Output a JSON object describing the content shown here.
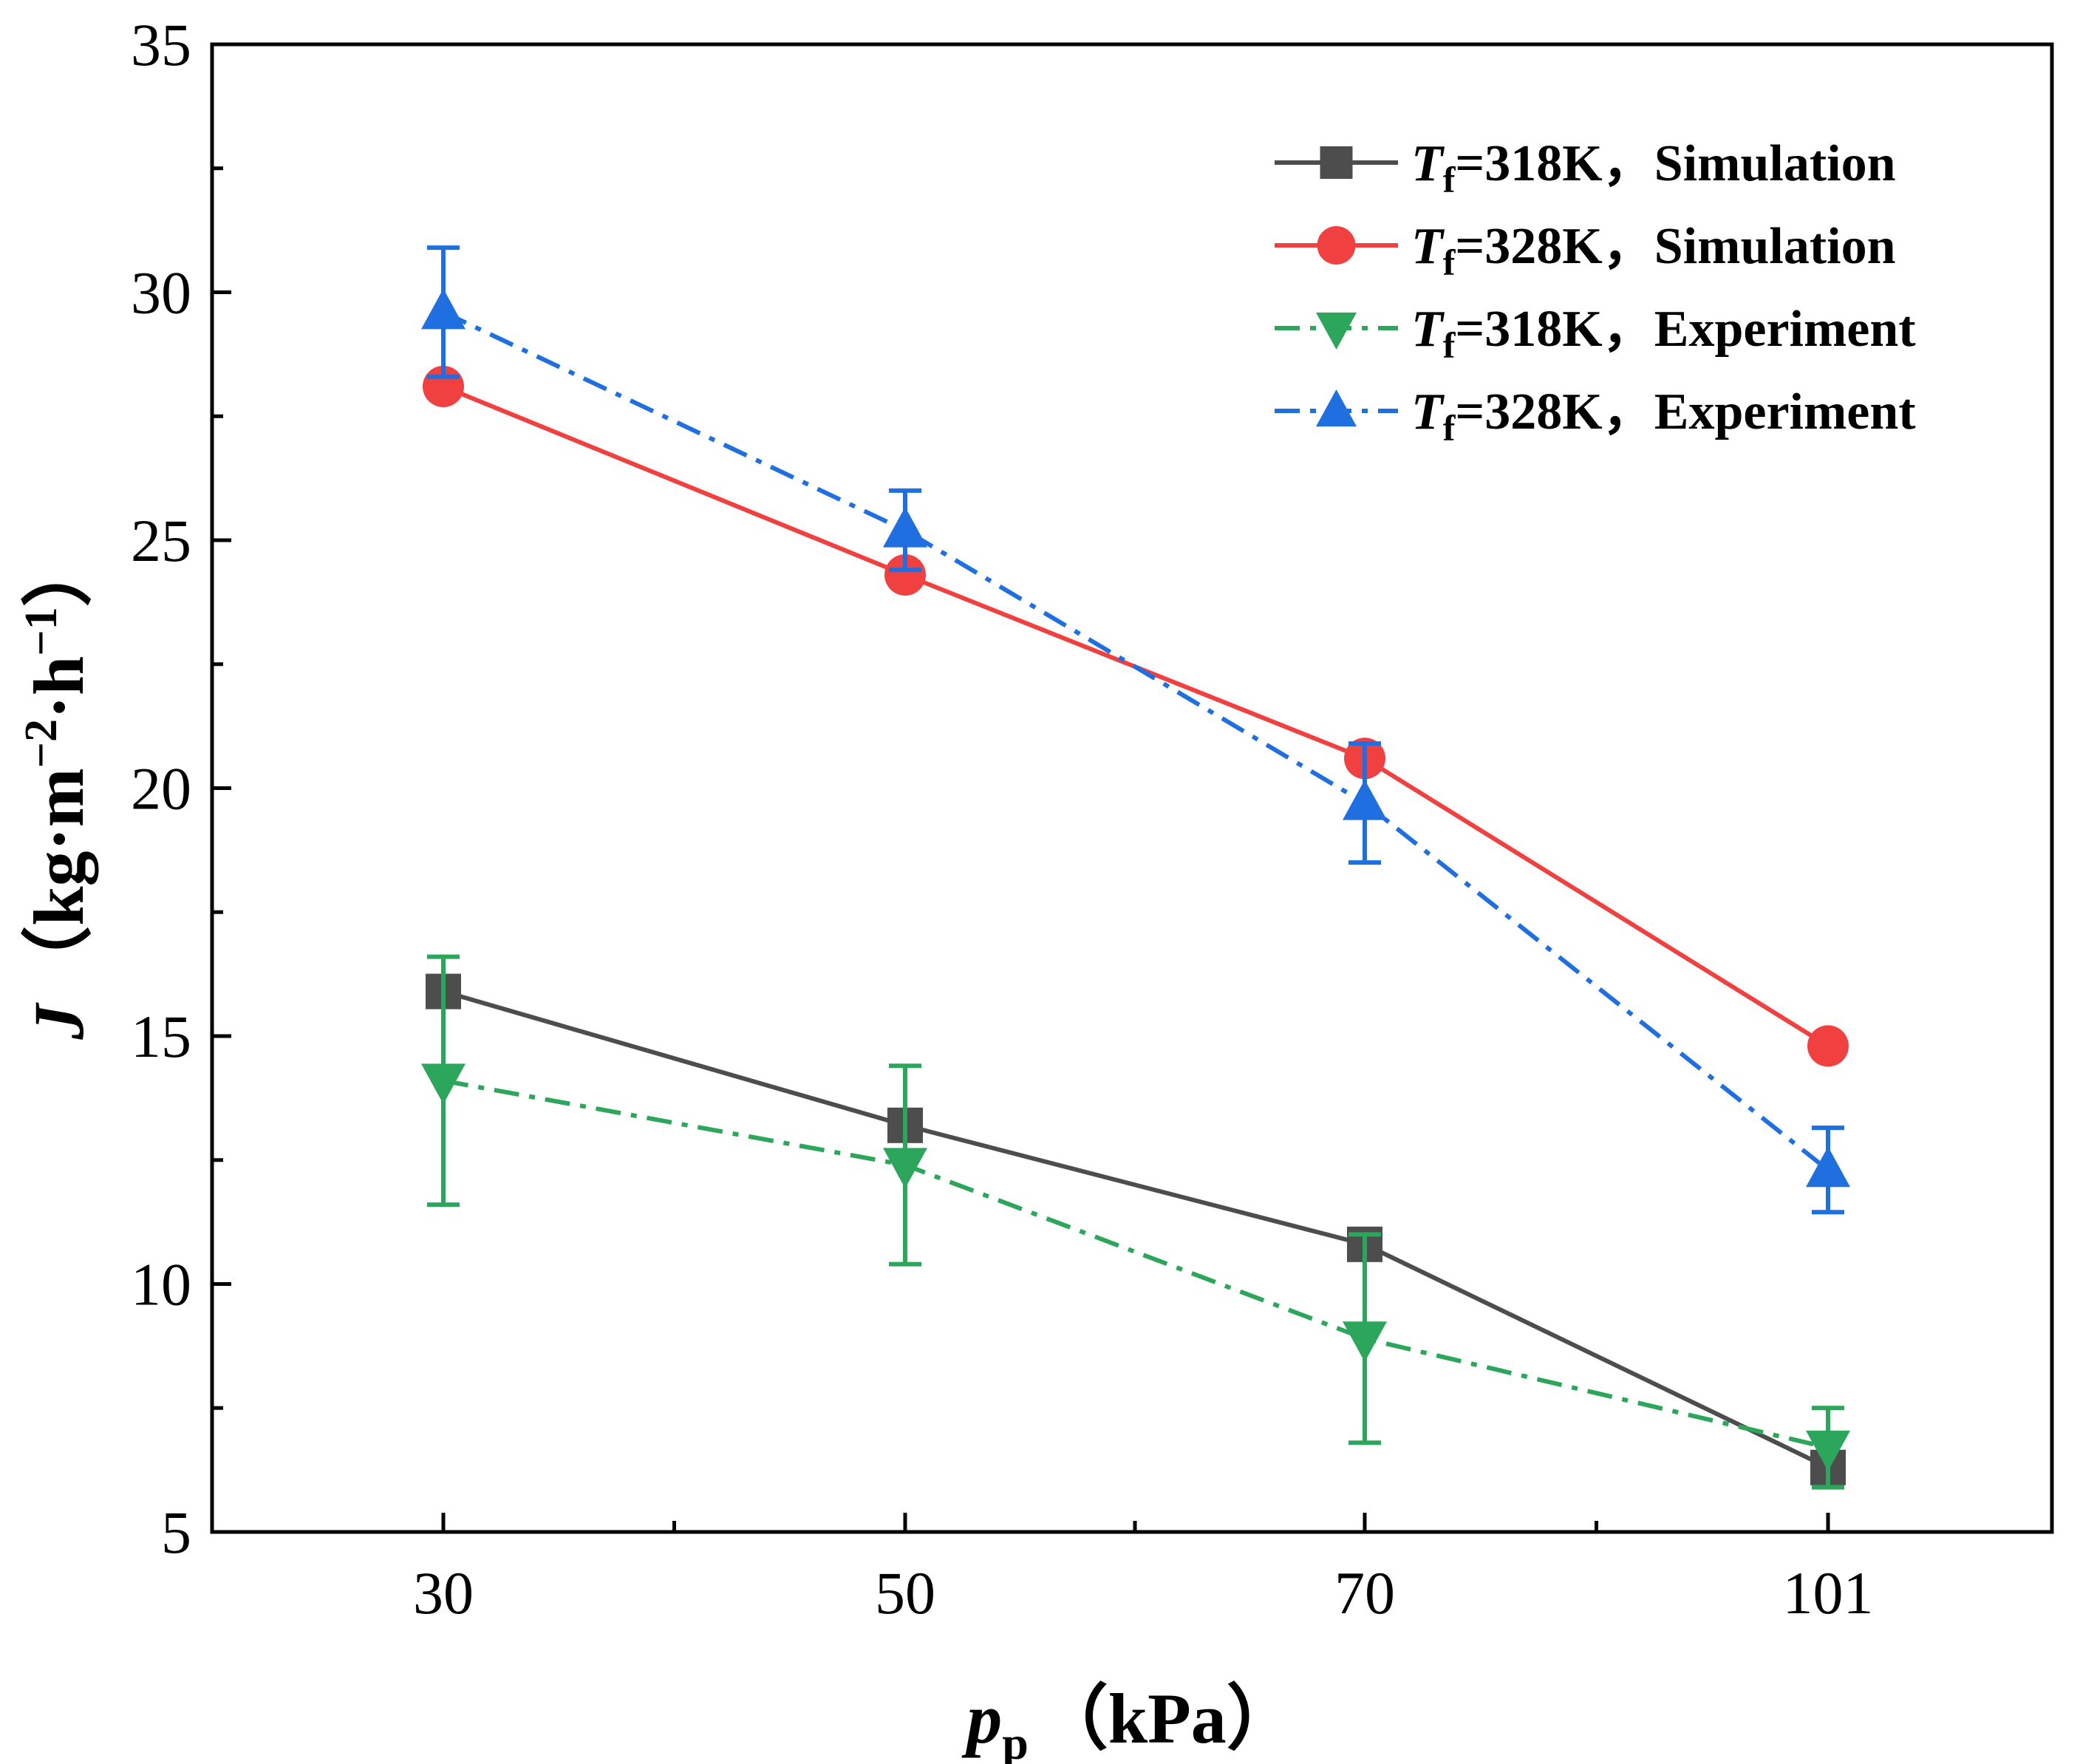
{
  "chart_data": {
    "type": "line",
    "xlabel": {
      "symbol": "p",
      "subscript": "p",
      "unit": "（kPa）"
    },
    "ylabel": {
      "symbol": "J",
      "unit_prefix": "（kg·m",
      "exp1": "−2",
      "unit_mid": "·h",
      "exp2": "−1",
      "unit_suffix": "）"
    },
    "x_categories": [
      "30",
      "50",
      "70",
      "101"
    ],
    "ylim": [
      5,
      35
    ],
    "yticks": [
      "5",
      "10",
      "15",
      "20",
      "25",
      "30",
      "35"
    ],
    "series": [
      {
        "name": "T_f=318K，Simulation",
        "legend_symbol": "T",
        "legend_sub": "f",
        "legend_rest": "=318K，Simulation",
        "color": "#4d4d4d",
        "line_style": "solid",
        "marker": "square",
        "values": [
          15.9,
          13.2,
          10.8,
          6.3
        ]
      },
      {
        "name": "T_f=328K，Simulation",
        "legend_symbol": "T",
        "legend_sub": "f",
        "legend_rest": "=328K，Simulation",
        "color": "#f04040",
        "line_style": "solid",
        "marker": "circle",
        "values": [
          28.1,
          24.3,
          20.6,
          14.8
        ]
      },
      {
        "name": "T_f=318K，Experiment",
        "legend_symbol": "T",
        "legend_sub": "f",
        "legend_rest": "=318K，Experiment",
        "color": "#2ca65a",
        "line_style": "dashdot",
        "marker": "triangle-down",
        "values": [
          14.1,
          12.4,
          8.9,
          6.7
        ],
        "errors": [
          2.5,
          2.0,
          2.1,
          0.8
        ]
      },
      {
        "name": "T_f=328K，Experiment",
        "legend_symbol": "T",
        "legend_sub": "f",
        "legend_rest": "=328K，Experiment",
        "color": "#1f6fe0",
        "line_style": "dashdot",
        "marker": "triangle-up",
        "values": [
          29.6,
          25.2,
          19.7,
          12.3
        ],
        "errors": [
          1.3,
          0.8,
          1.2,
          0.85
        ]
      }
    ],
    "legend_position": "top-right"
  }
}
